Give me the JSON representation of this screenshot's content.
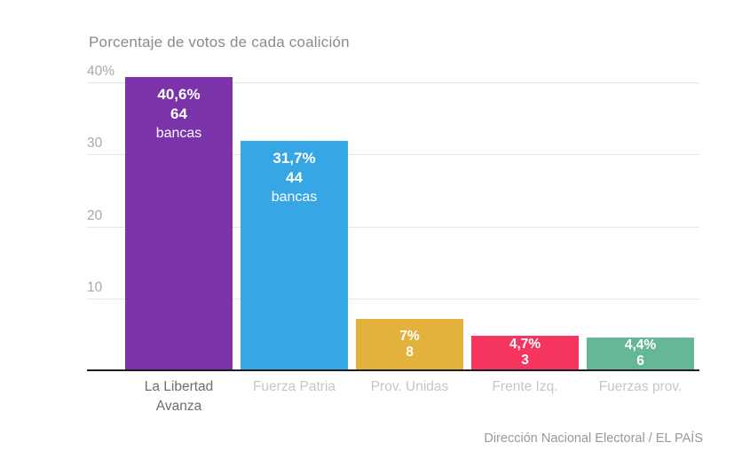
{
  "chart_data": {
    "type": "bar",
    "title": "Porcentaje de votos de cada coalición",
    "source": "Dirección Nacional Electoral / EL PAÍS",
    "xlabel": "",
    "ylabel": "",
    "ylim": [
      0,
      40.6
    ],
    "grid": true,
    "legend": "none",
    "yticks": [
      {
        "value": 40,
        "label": "40%"
      },
      {
        "value": 30,
        "label": "30"
      },
      {
        "value": 20,
        "label": "20"
      },
      {
        "value": 10,
        "label": "10"
      }
    ],
    "categories": [
      "La Libertad Avanza",
      "Fuerza Patria",
      "Prov. Unidas",
      "Frente Izq.",
      "Fuerzas prov."
    ],
    "bars": [
      {
        "category": "La Libertad Avanza",
        "value": 40.6,
        "pct_label": "40,6%",
        "seats": 64,
        "seats_label": "64",
        "unit_label": "bancas",
        "color": "#7b33a9",
        "axis_label_color": "#6d6e72"
      },
      {
        "category": "Fuerza Patria",
        "value": 31.7,
        "pct_label": "31,7%",
        "seats": 44,
        "seats_label": "44",
        "unit_label": "bancas",
        "color": "#36a7e4",
        "axis_label_color": "#c5c6c8"
      },
      {
        "category": "Prov. Unidas",
        "value": 7.0,
        "pct_label": "7%",
        "seats": 8,
        "seats_label": "8",
        "unit_label": "",
        "color": "#e2b23c",
        "axis_label_color": "#c5c6c8"
      },
      {
        "category": "Frente Izq.",
        "value": 4.7,
        "pct_label": "4,7%",
        "seats": 3,
        "seats_label": "3",
        "unit_label": "",
        "color": "#f6355f",
        "axis_label_color": "#c5c6c8"
      },
      {
        "category": "Fuerzas prov.",
        "value": 4.4,
        "pct_label": "4,4%",
        "seats": 6,
        "seats_label": "6",
        "unit_label": "",
        "color": "#66b795",
        "axis_label_color": "#c5c6c8"
      }
    ],
    "colors": {
      "background": "#ffffff",
      "gridline": "#e4e4e5",
      "axis_line": "#1f1f1f",
      "title_text": "#8a8b8e",
      "tick_text": "#a7a8ab",
      "source_text": "#98999c",
      "bar_value_text": "#ffffff"
    }
  }
}
